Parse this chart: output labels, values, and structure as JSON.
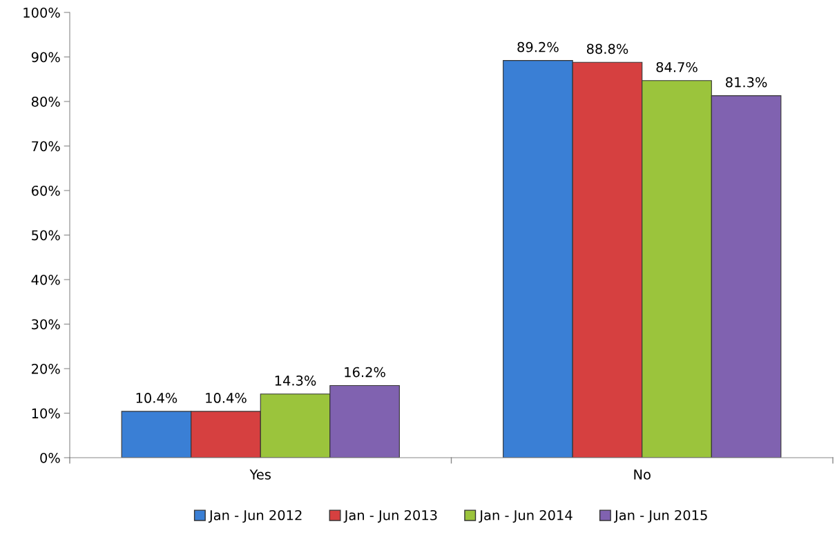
{
  "chart_data": {
    "type": "bar",
    "categories": [
      "Yes",
      "No"
    ],
    "series": [
      {
        "name": "Jan - Jun 2012",
        "color": "#3a7fd5",
        "values": [
          10.4,
          89.2
        ],
        "value_labels": [
          "10.4%",
          "89.2%"
        ]
      },
      {
        "name": "Jan - Jun 2013",
        "color": "#d64040",
        "values": [
          10.4,
          88.8
        ],
        "value_labels": [
          "10.4%",
          "88.8%"
        ]
      },
      {
        "name": "Jan - Jun 2014",
        "color": "#9bc43c",
        "values": [
          14.3,
          84.7
        ],
        "value_labels": [
          "14.3%",
          "84.7%"
        ]
      },
      {
        "name": "Jan - Jun 2015",
        "color": "#8062b0",
        "values": [
          16.2,
          81.3
        ],
        "value_labels": [
          "16.2%",
          "81.3%"
        ]
      }
    ],
    "ylim": [
      0,
      100
    ],
    "yticks": [
      {
        "value": 0,
        "label": "0%"
      },
      {
        "value": 10,
        "label": "10%"
      },
      {
        "value": 20,
        "label": "20%"
      },
      {
        "value": 30,
        "label": "30%"
      },
      {
        "value": 40,
        "label": "40%"
      },
      {
        "value": 50,
        "label": "50%"
      },
      {
        "value": 60,
        "label": "60%"
      },
      {
        "value": 70,
        "label": "70%"
      },
      {
        "value": 80,
        "label": "80%"
      },
      {
        "value": 90,
        "label": "90%"
      },
      {
        "value": 100,
        "label": "100%"
      }
    ],
    "grid": false,
    "legend": "bottom"
  }
}
